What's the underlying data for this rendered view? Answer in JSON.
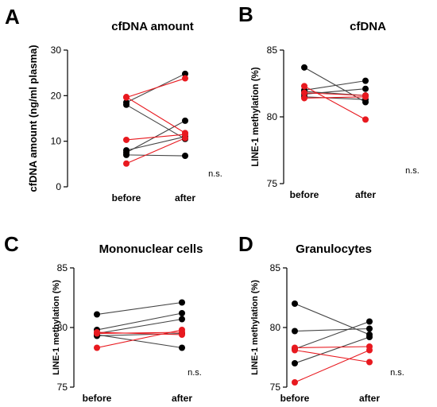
{
  "chart_data": [
    {
      "type": "scatter",
      "panel": "A",
      "title": "cfDNA amount",
      "ylabel": "cfDNA amount (ng/ml plasma)",
      "categories": [
        "before",
        "after"
      ],
      "ylim": [
        0,
        30
      ],
      "yticks": [
        0,
        10,
        20,
        30
      ],
      "annotation": "n.s.",
      "series": [
        {
          "color": "#000000",
          "values": [
            18.5,
            24.8
          ]
        },
        {
          "color": "#000000",
          "values": [
            18.0,
            10.5
          ]
        },
        {
          "color": "#000000",
          "values": [
            7.5,
            14.5
          ]
        },
        {
          "color": "#000000",
          "values": [
            7.0,
            6.8
          ]
        },
        {
          "color": "#000000",
          "values": [
            8.0,
            11.0
          ]
        },
        {
          "color": "#e8191f",
          "values": [
            19.7,
            11.8
          ]
        },
        {
          "color": "#e8191f",
          "values": [
            10.3,
            11.5
          ]
        },
        {
          "color": "#e8191f",
          "values": [
            5.1,
            10.7
          ]
        },
        {
          "color": "#e8191f",
          "values": [
            19.6,
            23.8
          ]
        }
      ]
    },
    {
      "type": "scatter",
      "panel": "B",
      "title": "cfDNA",
      "ylabel": "LINE-1 methylation (%)",
      "categories": [
        "before",
        "after"
      ],
      "ylim": [
        75,
        85
      ],
      "yticks": [
        75,
        80,
        85
      ],
      "annotation": "n.s.",
      "series": [
        {
          "color": "#000000",
          "values": [
            83.7,
            81.1
          ]
        },
        {
          "color": "#000000",
          "values": [
            82.0,
            82.7
          ]
        },
        {
          "color": "#000000",
          "values": [
            81.9,
            81.6
          ]
        },
        {
          "color": "#000000",
          "values": [
            81.7,
            82.1
          ]
        },
        {
          "color": "#000000",
          "values": [
            81.5,
            81.3
          ]
        },
        {
          "color": "#e8191f",
          "values": [
            82.3,
            79.8
          ]
        },
        {
          "color": "#e8191f",
          "values": [
            81.8,
            81.6
          ]
        },
        {
          "color": "#e8191f",
          "values": [
            81.4,
            81.5
          ]
        }
      ]
    },
    {
      "type": "scatter",
      "panel": "C",
      "title": "Mononuclear cells",
      "ylabel": "LINE-1 methylation (%)",
      "categories": [
        "before",
        "after"
      ],
      "ylim": [
        75,
        85
      ],
      "yticks": [
        75,
        80,
        85
      ],
      "annotation": "n.s.",
      "series": [
        {
          "color": "#000000",
          "values": [
            81.1,
            82.1
          ]
        },
        {
          "color": "#000000",
          "values": [
            79.8,
            81.2
          ]
        },
        {
          "color": "#000000",
          "values": [
            79.5,
            80.7
          ]
        },
        {
          "color": "#000000",
          "values": [
            79.4,
            78.3
          ]
        },
        {
          "color": "#000000",
          "values": [
            79.3,
            79.5
          ]
        },
        {
          "color": "#e8191f",
          "values": [
            78.3,
            79.8
          ]
        },
        {
          "color": "#e8191f",
          "values": [
            79.5,
            79.6
          ]
        },
        {
          "color": "#e8191f",
          "values": [
            79.6,
            79.4
          ]
        }
      ]
    },
    {
      "type": "scatter",
      "panel": "D",
      "title": "Granulocytes",
      "ylabel": "LINE-1 methylation (%)",
      "categories": [
        "before",
        "after"
      ],
      "ylim": [
        75,
        85
      ],
      "yticks": [
        75,
        80,
        85
      ],
      "annotation": "n.s.",
      "series": [
        {
          "color": "#000000",
          "values": [
            82.0,
            79.4
          ]
        },
        {
          "color": "#000000",
          "values": [
            79.7,
            79.9
          ]
        },
        {
          "color": "#000000",
          "values": [
            78.2,
            80.5
          ]
        },
        {
          "color": "#000000",
          "values": [
            77.0,
            79.2
          ]
        },
        {
          "color": "#e8191f",
          "values": [
            78.3,
            78.4
          ]
        },
        {
          "color": "#e8191f",
          "values": [
            78.1,
            77.1
          ]
        },
        {
          "color": "#e8191f",
          "values": [
            75.4,
            78.1
          ]
        }
      ]
    }
  ]
}
